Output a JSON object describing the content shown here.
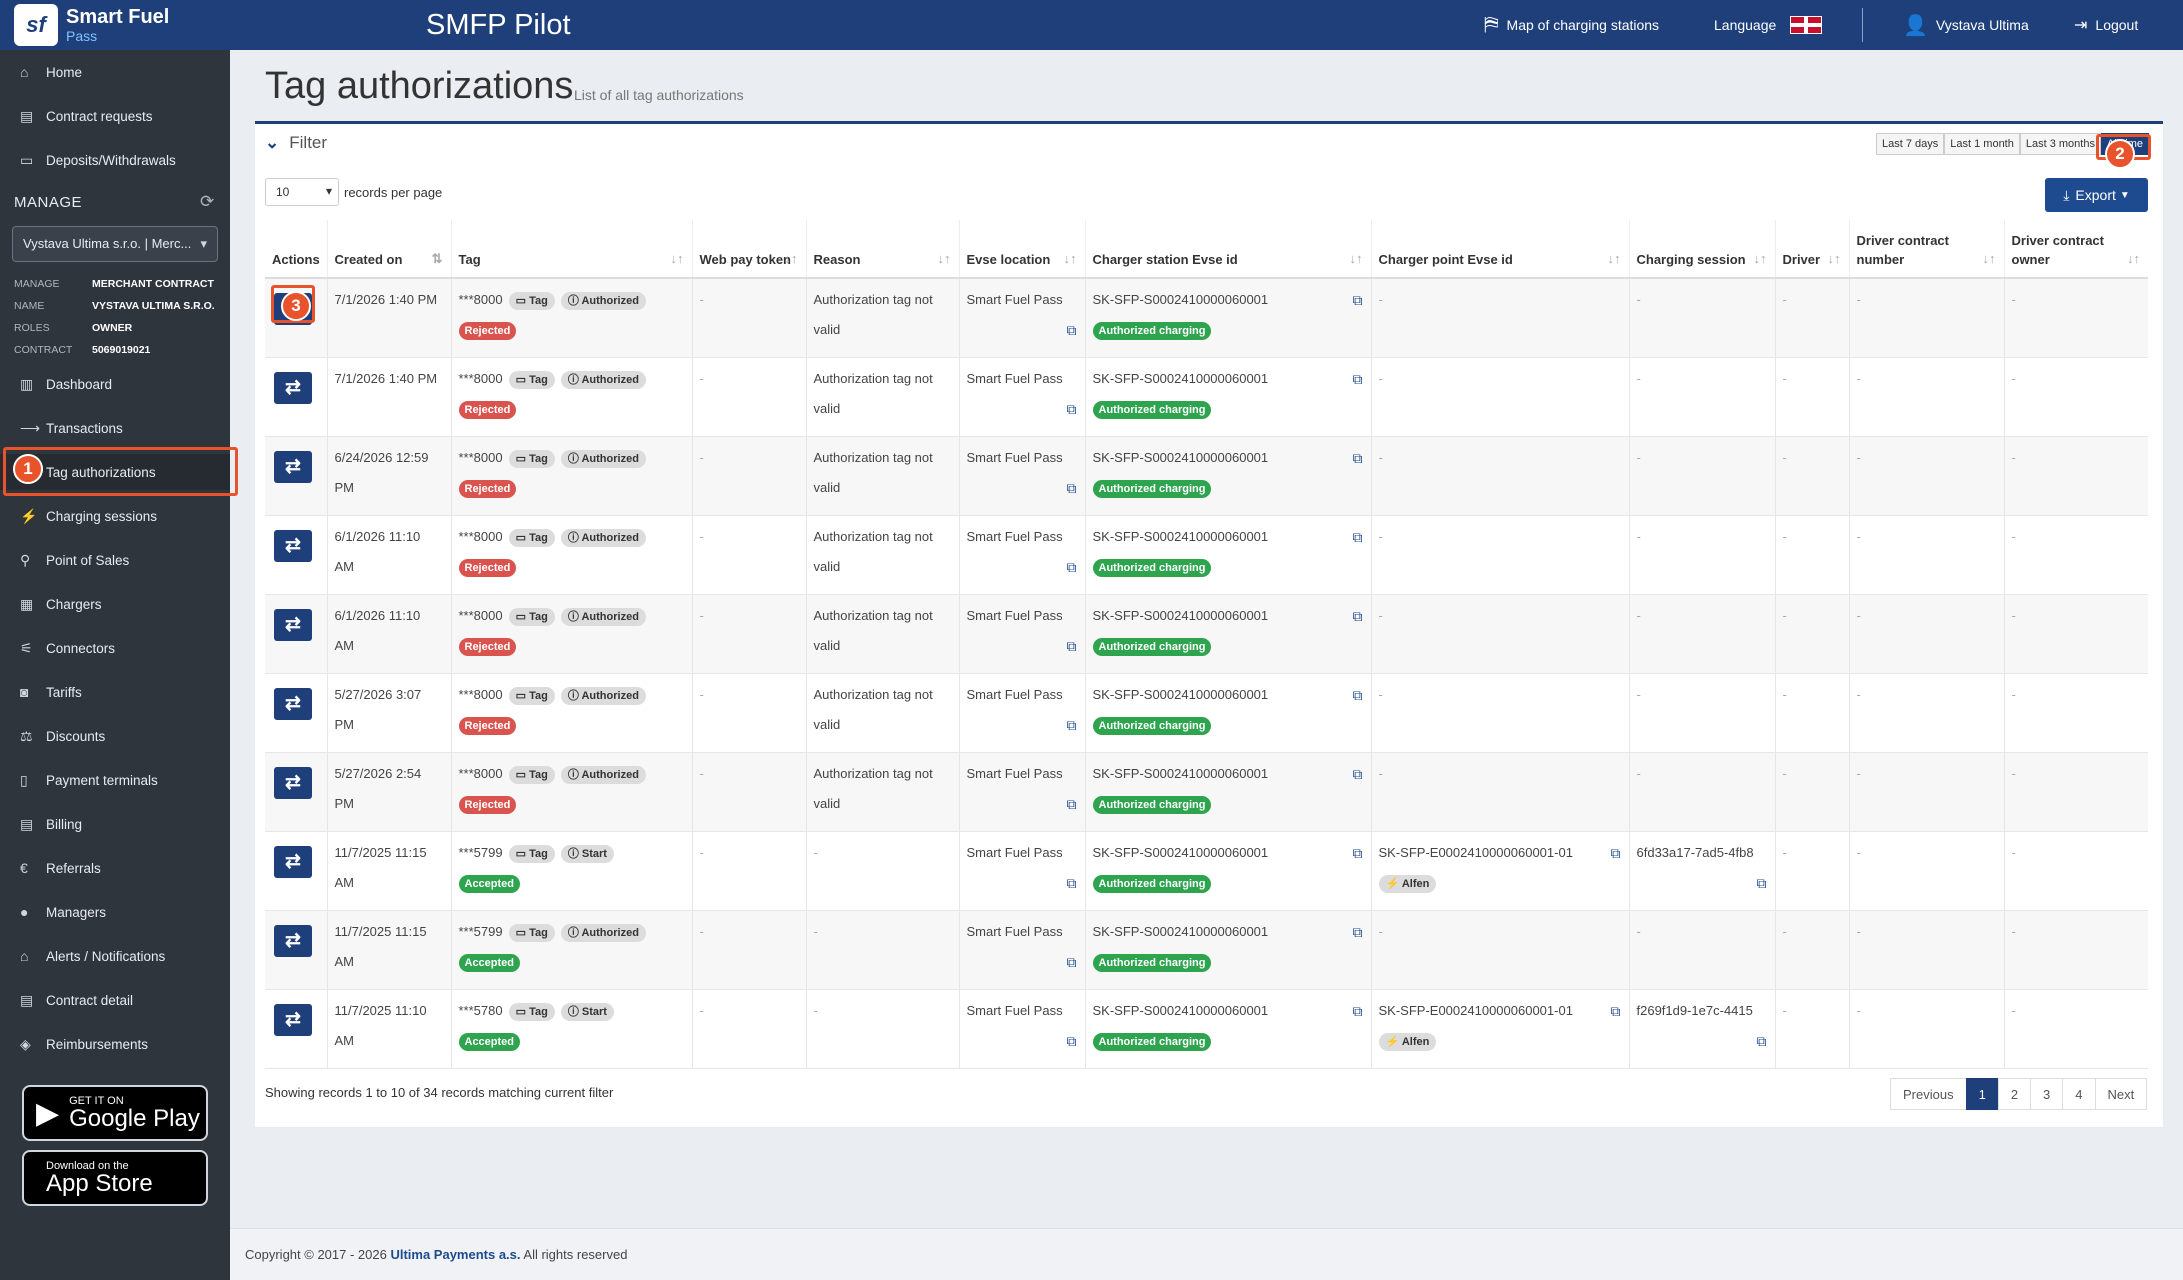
{
  "app": {
    "logo_l1": "Smart Fuel",
    "logo_l2": "Pass",
    "title": "SMFP Pilot"
  },
  "topnav": {
    "map": "Map of charging stations",
    "language": "Language",
    "user": "Vystava Ultima",
    "logout": "Logout"
  },
  "sidebar": {
    "top_items": [
      {
        "label": "Home",
        "icon": "home-icon",
        "glyph": "⌂"
      },
      {
        "label": "Contract requests",
        "icon": "document-icon",
        "glyph": "▤"
      },
      {
        "label": "Deposits/Withdrawals",
        "icon": "card-icon",
        "glyph": "▭"
      }
    ],
    "manage_title": "MANAGE",
    "manage_select": "Vystava Ultima s.r.o. | Merc...",
    "info": [
      {
        "k": "MANAGE",
        "v": "MERCHANT CONTRACT"
      },
      {
        "k": "NAME",
        "v": "VYSTAVA ULTIMA S.R.O."
      },
      {
        "k": "ROLES",
        "v": "OWNER"
      },
      {
        "k": "CONTRACT",
        "v": "5069019021"
      }
    ],
    "items": [
      {
        "label": "Dashboard",
        "glyph": "▥"
      },
      {
        "label": "Transactions",
        "glyph": "⟶"
      },
      {
        "label": "Tag authorizations",
        "glyph": ""
      },
      {
        "label": "Charging sessions",
        "glyph": "⚡"
      },
      {
        "label": "Point of Sales",
        "glyph": "⚲"
      },
      {
        "label": "Chargers",
        "glyph": "▦"
      },
      {
        "label": "Connectors",
        "glyph": "⚟"
      },
      {
        "label": "Tariffs",
        "glyph": "◙"
      },
      {
        "label": "Discounts",
        "glyph": "⚖"
      },
      {
        "label": "Payment terminals",
        "glyph": "▯"
      },
      {
        "label": "Billing",
        "glyph": "▤"
      },
      {
        "label": "Referrals",
        "glyph": "€"
      },
      {
        "label": "Managers",
        "glyph": "●"
      },
      {
        "label": "Alerts / Notifications",
        "glyph": "⌂"
      },
      {
        "label": "Contract detail",
        "glyph": "▤"
      },
      {
        "label": "Reimbursements",
        "glyph": "◈"
      }
    ],
    "google": {
      "l1": "GET IT ON",
      "l2": "Google Play"
    },
    "apple": {
      "l1": "Download on the",
      "l2": "App Store"
    }
  },
  "page": {
    "title": "Tag authorizations",
    "subtitle": "List of all tag authorizations"
  },
  "filter": {
    "label": "Filter",
    "ranges": [
      "Last 7 days",
      "Last 1 month",
      "Last 3 months",
      "All time"
    ],
    "selected_range": "All time"
  },
  "records_per_page": {
    "value": "10",
    "label": "records per page"
  },
  "export_label": "Export",
  "table": {
    "headers": [
      "Actions",
      "Created on",
      "Tag",
      "Web pay token",
      "Reason",
      "Evse location",
      "Charger station Evse id",
      "Charger point Evse id",
      "Charging session",
      "Driver",
      "Driver contract number",
      "Driver contract owner"
    ],
    "rows": [
      {
        "created_l1": "7/1/2026 1:40 PM",
        "created_l2": "",
        "tag": "***8000",
        "type": "Tag",
        "stage": "Authorized",
        "result": "Rejected",
        "token": "-",
        "reason_l1": "Authorization tag not",
        "reason_l2": "valid",
        "location": "Smart Fuel Pass",
        "station": "SK-SFP-S0002410000060001",
        "station_status": "Authorized charging",
        "point": "-",
        "point_vendor": "",
        "session": "-",
        "driver": "-",
        "contract_no": "-",
        "contract_owner": "-"
      },
      {
        "created_l1": "7/1/2026 1:40 PM",
        "created_l2": "",
        "tag": "***8000",
        "type": "Tag",
        "stage": "Authorized",
        "result": "Rejected",
        "token": "-",
        "reason_l1": "Authorization tag not",
        "reason_l2": "valid",
        "location": "Smart Fuel Pass",
        "station": "SK-SFP-S0002410000060001",
        "station_status": "Authorized charging",
        "point": "-",
        "point_vendor": "",
        "session": "-",
        "driver": "-",
        "contract_no": "-",
        "contract_owner": "-"
      },
      {
        "created_l1": "6/24/2026 12:59",
        "created_l2": "PM",
        "tag": "***8000",
        "type": "Tag",
        "stage": "Authorized",
        "result": "Rejected",
        "token": "-",
        "reason_l1": "Authorization tag not",
        "reason_l2": "valid",
        "location": "Smart Fuel Pass",
        "station": "SK-SFP-S0002410000060001",
        "station_status": "Authorized charging",
        "point": "-",
        "point_vendor": "",
        "session": "-",
        "driver": "-",
        "contract_no": "-",
        "contract_owner": "-"
      },
      {
        "created_l1": "6/1/2026 11:10",
        "created_l2": "AM",
        "tag": "***8000",
        "type": "Tag",
        "stage": "Authorized",
        "result": "Rejected",
        "token": "-",
        "reason_l1": "Authorization tag not",
        "reason_l2": "valid",
        "location": "Smart Fuel Pass",
        "station": "SK-SFP-S0002410000060001",
        "station_status": "Authorized charging",
        "point": "-",
        "point_vendor": "",
        "session": "-",
        "driver": "-",
        "contract_no": "-",
        "contract_owner": "-"
      },
      {
        "created_l1": "6/1/2026 11:10",
        "created_l2": "AM",
        "tag": "***8000",
        "type": "Tag",
        "stage": "Authorized",
        "result": "Rejected",
        "token": "-",
        "reason_l1": "Authorization tag not",
        "reason_l2": "valid",
        "location": "Smart Fuel Pass",
        "station": "SK-SFP-S0002410000060001",
        "station_status": "Authorized charging",
        "point": "-",
        "point_vendor": "",
        "session": "-",
        "driver": "-",
        "contract_no": "-",
        "contract_owner": "-"
      },
      {
        "created_l1": "5/27/2026 3:07",
        "created_l2": "PM",
        "tag": "***8000",
        "type": "Tag",
        "stage": "Authorized",
        "result": "Rejected",
        "token": "-",
        "reason_l1": "Authorization tag not",
        "reason_l2": "valid",
        "location": "Smart Fuel Pass",
        "station": "SK-SFP-S0002410000060001",
        "station_status": "Authorized charging",
        "point": "-",
        "point_vendor": "",
        "session": "-",
        "driver": "-",
        "contract_no": "-",
        "contract_owner": "-"
      },
      {
        "created_l1": "5/27/2026 2:54",
        "created_l2": "PM",
        "tag": "***8000",
        "type": "Tag",
        "stage": "Authorized",
        "result": "Rejected",
        "token": "-",
        "reason_l1": "Authorization tag not",
        "reason_l2": "valid",
        "location": "Smart Fuel Pass",
        "station": "SK-SFP-S0002410000060001",
        "station_status": "Authorized charging",
        "point": "-",
        "point_vendor": "",
        "session": "-",
        "driver": "-",
        "contract_no": "-",
        "contract_owner": "-"
      },
      {
        "created_l1": "11/7/2025 11:15",
        "created_l2": "AM",
        "tag": "***5799",
        "type": "Tag",
        "stage": "Start",
        "result": "Accepted",
        "token": "-",
        "reason_l1": "-",
        "reason_l2": "",
        "location": "Smart Fuel Pass",
        "station": "SK-SFP-S0002410000060001",
        "station_status": "Authorized charging",
        "point": "SK-SFP-E0002410000060001-01",
        "point_vendor": "Alfen",
        "session": "6fd33a17-7ad5-4fb8",
        "driver": "-",
        "contract_no": "-",
        "contract_owner": "-"
      },
      {
        "created_l1": "11/7/2025 11:15",
        "created_l2": "AM",
        "tag": "***5799",
        "type": "Tag",
        "stage": "Authorized",
        "result": "Accepted",
        "token": "-",
        "reason_l1": "-",
        "reason_l2": "",
        "location": "Smart Fuel Pass",
        "station": "SK-SFP-S0002410000060001",
        "station_status": "Authorized charging",
        "point": "-",
        "point_vendor": "",
        "session": "-",
        "driver": "-",
        "contract_no": "-",
        "contract_owner": "-"
      },
      {
        "created_l1": "11/7/2025 11:10",
        "created_l2": "AM",
        "tag": "***5780",
        "type": "Tag",
        "stage": "Start",
        "result": "Accepted",
        "token": "-",
        "reason_l1": "-",
        "reason_l2": "",
        "location": "Smart Fuel Pass",
        "station": "SK-SFP-S0002410000060001",
        "station_status": "Authorized charging",
        "point": "SK-SFP-E0002410000060001-01",
        "point_vendor": "Alfen",
        "session": "f269f1d9-1e7c-4415",
        "driver": "-",
        "contract_no": "-",
        "contract_owner": "-"
      }
    ]
  },
  "footer": {
    "showing": "Showing records 1 to 10 of 34 records matching current filter"
  },
  "pager": {
    "prev": "Previous",
    "pages": [
      "1",
      "2",
      "3",
      "4"
    ],
    "current": "1",
    "next": "Next"
  },
  "copyright": {
    "pre": "Copyright © 2017 - 2026 ",
    "company": "Ultima Payments a.s.",
    "post": " All rights reserved"
  },
  "annotations": [
    "1",
    "2",
    "3"
  ],
  "colors": {
    "brand": "#1e3f7a",
    "accent": "#e8532b",
    "rejected": "#d9534f",
    "accepted": "#2ea44f"
  }
}
